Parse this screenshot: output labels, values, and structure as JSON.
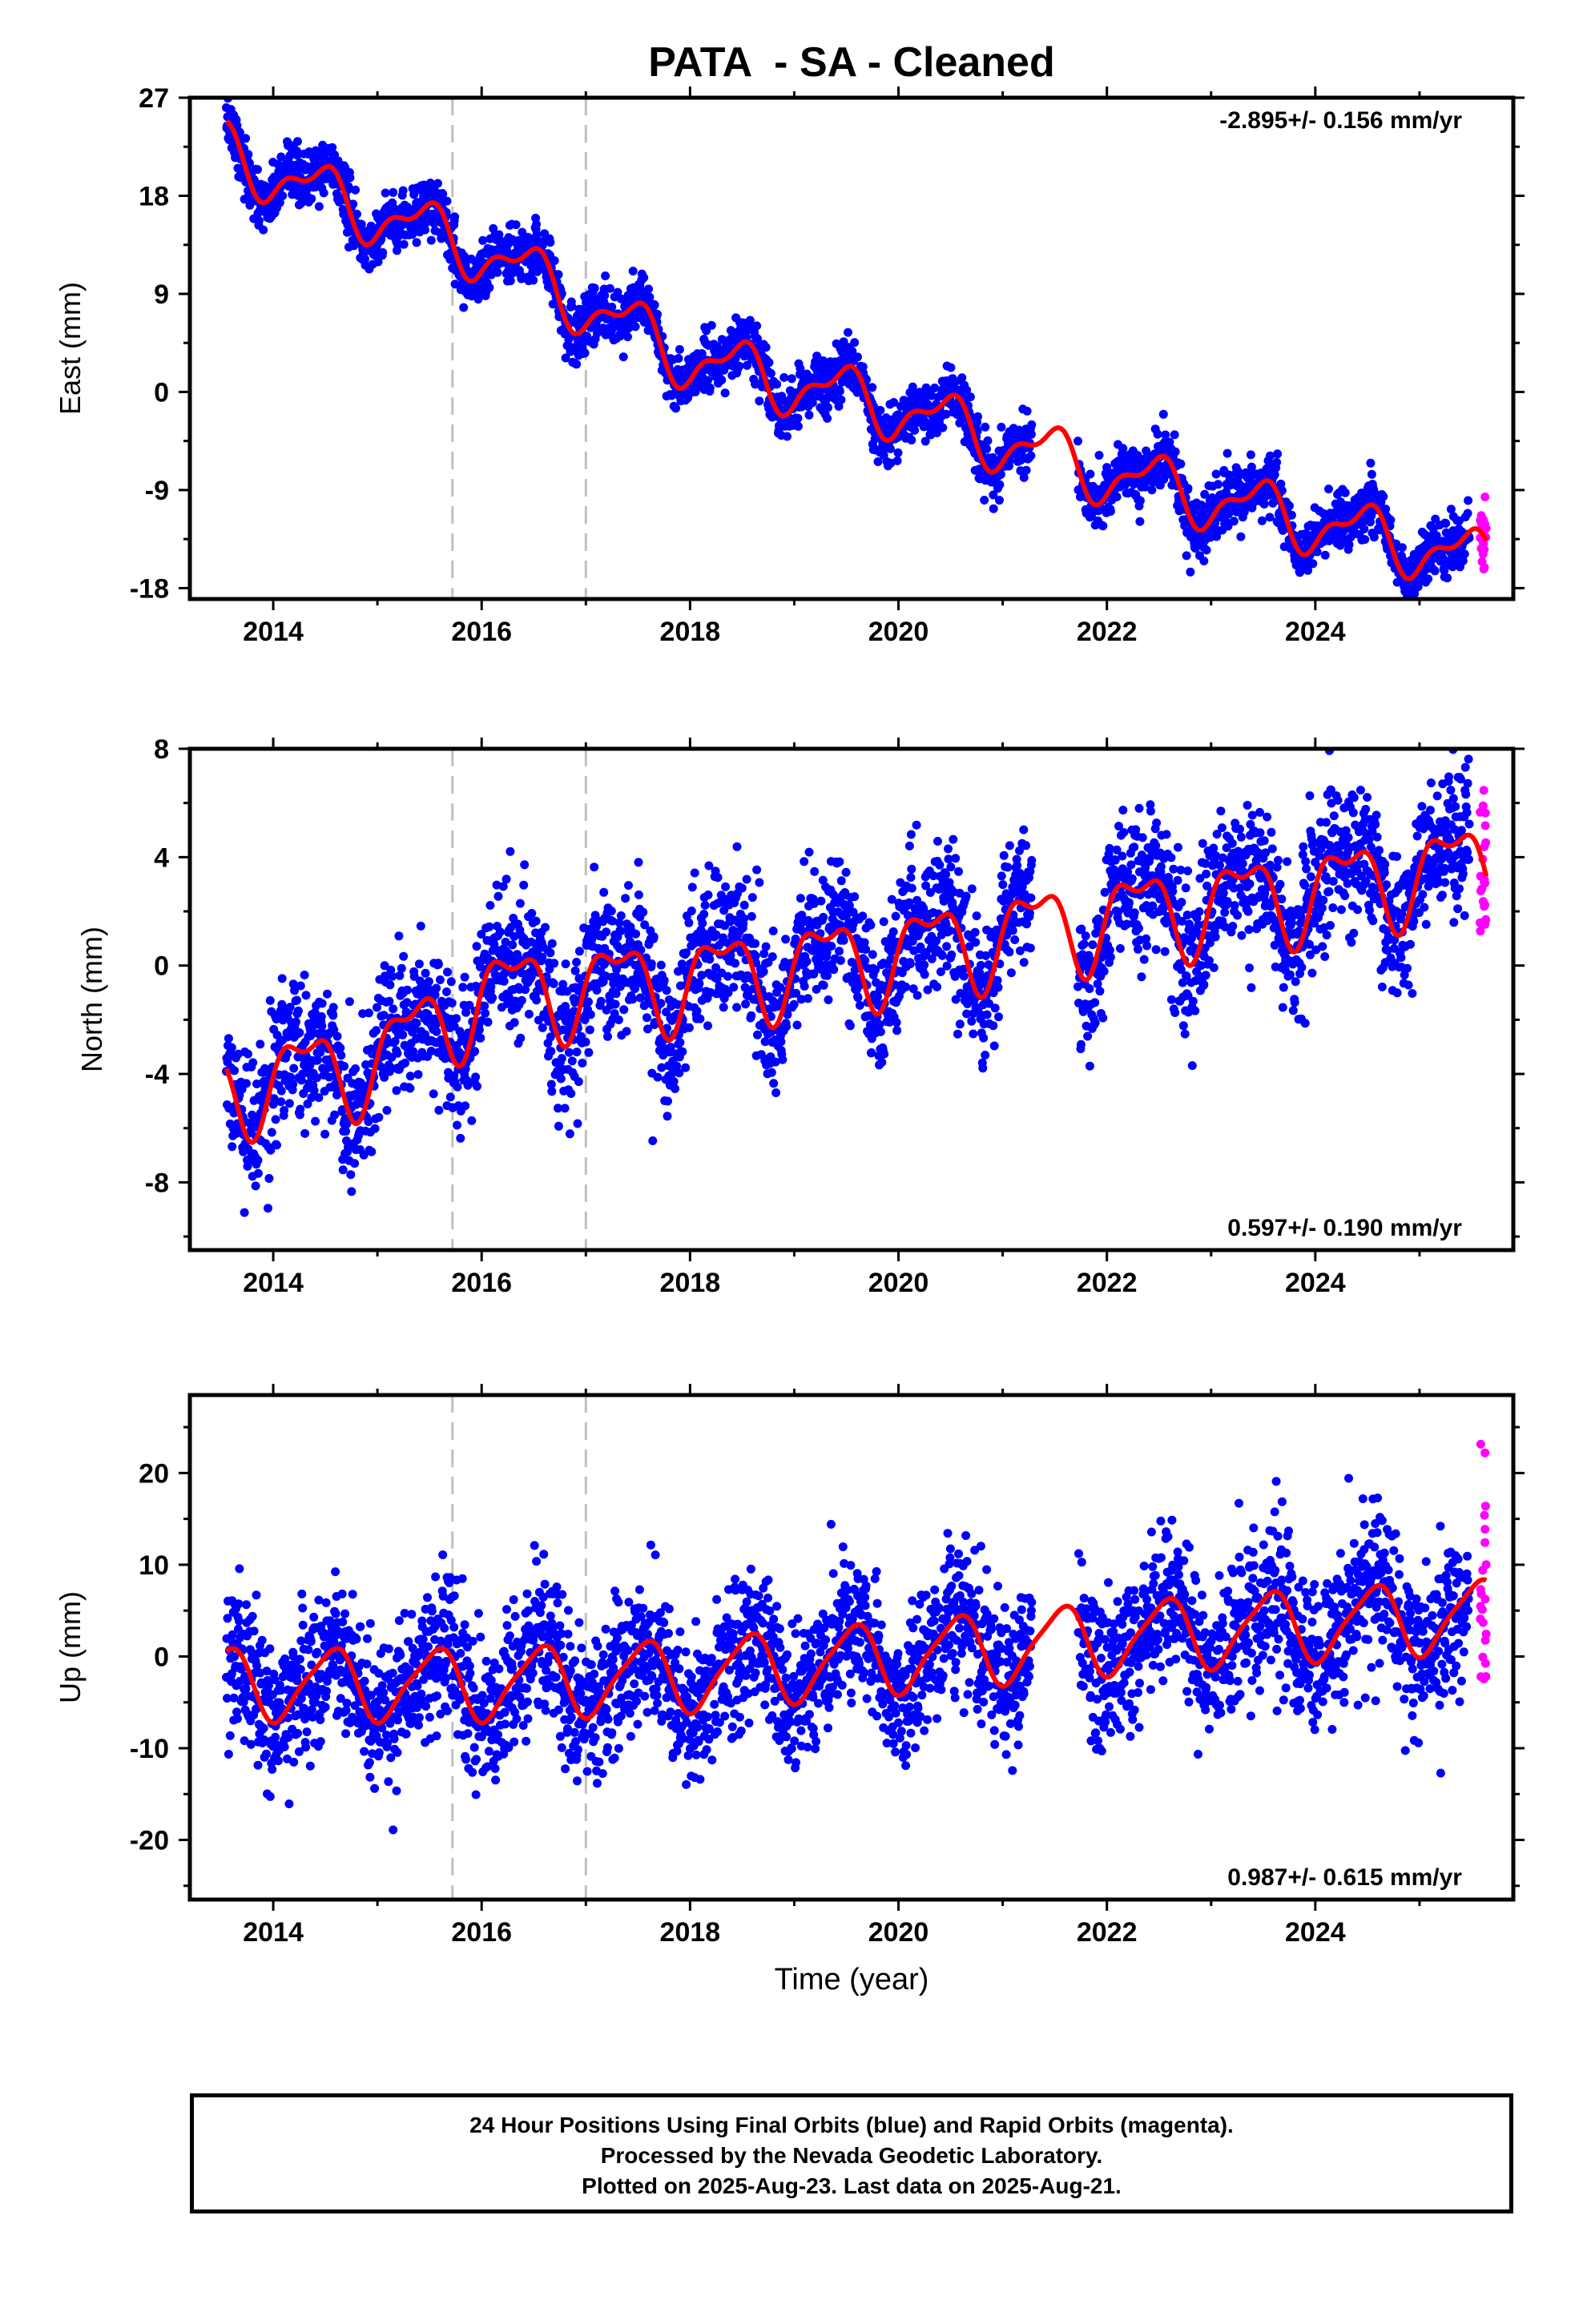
{
  "title": "PATA  - SA - Cleaned",
  "colors": {
    "final": "#0000ff",
    "rapid": "#ff00ff",
    "model": "#ff0000",
    "offset_line": "#c0c0c0"
  },
  "footer": {
    "line1": "24 Hour Positions Using Final Orbits (blue) and Rapid Orbits (magenta).",
    "line2": "Processed by the Nevada Geodetic Laboratory.",
    "line3": "Plotted on 2025-Aug-23. Last data on 2025-Aug-21."
  },
  "chart_data": [
    {
      "type": "scatter",
      "id": "east",
      "ylabel": "East (mm)",
      "xlabel": "",
      "rate_label": "-2.895+/- 0.156 mm/yr",
      "rate_position": "top-right",
      "xlim": [
        2013.2,
        2025.9
      ],
      "ylim": [
        -19.0,
        27.0
      ],
      "xticks": [
        2014,
        2016,
        2018,
        2020,
        2022,
        2024
      ],
      "yticks": [
        27,
        18,
        9,
        0,
        -9,
        -18
      ],
      "offset_lines": [
        2015.72,
        2017.0
      ],
      "data_gap": [
        2021.28,
        2021.72
      ],
      "data_start": 2013.55,
      "final_end": 2025.48,
      "rapid_range": [
        2025.58,
        2025.64
      ],
      "series": [
        {
          "name": "Final Orbits",
          "kind": "points"
        },
        {
          "name": "Rapid Orbits",
          "kind": "points"
        },
        {
          "name": "Model",
          "kind": "line"
        }
      ],
      "model": {
        "anchors": [
          [
            2013.55,
            22.0
          ],
          [
            2014.5,
            18.0
          ],
          [
            2016.0,
            13.0
          ],
          [
            2018.0,
            3.0
          ],
          [
            2020.0,
            -1.5
          ],
          [
            2022.0,
            -7.5
          ],
          [
            2024.0,
            -12.0
          ],
          [
            2025.6,
            -15.5
          ]
        ],
        "annual_amp": 2.4,
        "annual_phase": 0.45,
        "semiannual_amp": 1.1,
        "semiannual_phase": 0.1
      },
      "scatter_sd": 1.3
    },
    {
      "type": "scatter",
      "id": "north",
      "ylabel": "North (mm)",
      "xlabel": "",
      "rate_label": "0.597+/- 0.190 mm/yr",
      "rate_position": "bottom-right",
      "xlim": [
        2013.2,
        2025.9
      ],
      "ylim": [
        -10.5,
        8.0
      ],
      "xticks": [
        2014,
        2016,
        2018,
        2020,
        2022,
        2024
      ],
      "yticks": [
        8,
        4,
        0,
        -4,
        -8
      ],
      "offset_lines": [
        2015.72,
        2017.0
      ],
      "data_gap": [
        2021.28,
        2021.72
      ],
      "data_start": 2013.55,
      "final_end": 2025.48,
      "rapid_range": [
        2025.58,
        2025.64
      ],
      "series": [
        {
          "name": "Final Orbits",
          "kind": "points"
        },
        {
          "name": "Rapid Orbits",
          "kind": "points"
        },
        {
          "name": "Model",
          "kind": "line"
        }
      ],
      "model": {
        "anchors": [
          [
            2013.55,
            -4.5
          ],
          [
            2015.0,
            -3.5
          ],
          [
            2016.0,
            -1.0
          ],
          [
            2018.0,
            -0.5
          ],
          [
            2020.0,
            0.5
          ],
          [
            2022.0,
            1.8
          ],
          [
            2024.0,
            2.8
          ],
          [
            2025.6,
            3.8
          ]
        ],
        "annual_amp": 1.5,
        "annual_phase": 0.3,
        "semiannual_amp": 0.7,
        "semiannual_phase": 0.55
      },
      "scatter_sd": 1.3
    },
    {
      "type": "scatter",
      "id": "up",
      "ylabel": "Up (mm)",
      "xlabel": "Time (year)",
      "rate_label": "0.987+/- 0.615 mm/yr",
      "rate_position": "bottom-right",
      "xlim": [
        2013.2,
        2025.9
      ],
      "ylim": [
        -26.5,
        28.5
      ],
      "xticks": [
        2014,
        2016,
        2018,
        2020,
        2022,
        2024
      ],
      "yticks": [
        20,
        10,
        0,
        -10,
        -20
      ],
      "offset_lines": [
        2015.72,
        2017.0
      ],
      "data_gap": [
        2021.28,
        2021.72
      ],
      "data_start": 2013.55,
      "final_end": 2025.48,
      "rapid_range": [
        2025.58,
        2025.64
      ],
      "series": [
        {
          "name": "Final Orbits",
          "kind": "points"
        },
        {
          "name": "Rapid Orbits",
          "kind": "points"
        },
        {
          "name": "Model",
          "kind": "line"
        }
      ],
      "model": {
        "anchors": [
          [
            2013.55,
            -3.0
          ],
          [
            2016.0,
            -3.0
          ],
          [
            2018.0,
            -2.0
          ],
          [
            2020.0,
            0.0
          ],
          [
            2022.0,
            2.0
          ],
          [
            2024.0,
            3.5
          ],
          [
            2025.6,
            4.5
          ]
        ],
        "annual_amp": 3.8,
        "annual_phase": 0.55,
        "semiannual_amp": 0.8,
        "semiannual_phase": 0.2
      },
      "scatter_sd": 4.0
    }
  ]
}
